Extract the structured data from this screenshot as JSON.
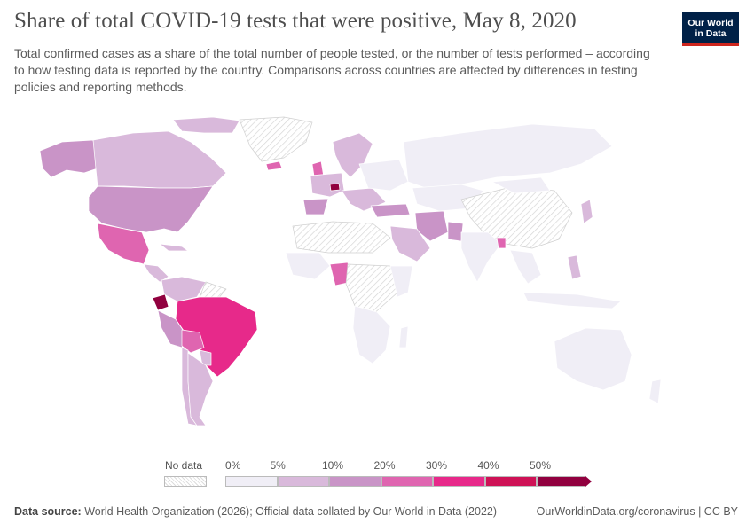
{
  "header": {
    "title": "Share of total COVID-19 tests that were positive, May 8, 2020",
    "subtitle": "Total confirmed cases as a share of the total number of people tested, or the number of tests performed – according to how testing data is reported by the country. Comparisons across countries are affected by differences in testing policies and reporting methods.",
    "logo_line1": "Our World",
    "logo_line2": "in Data"
  },
  "chart_data": {
    "type": "map",
    "title": "Share of total COVID-19 tests that were positive, May 8, 2020",
    "date": "May 8, 2020",
    "units": "% of tests positive",
    "legend": {
      "no_data_label": "No data",
      "bins": [
        "0%",
        "5%",
        "10%",
        "20%",
        "30%",
        "40%",
        "50%"
      ],
      "colors": [
        "#f0eef6",
        "#d9b9db",
        "#c994c7",
        "#df65b0",
        "#e7298a",
        "#ce1256",
        "#91003f"
      ]
    },
    "regions": [
      {
        "name": "Ecuador",
        "bin": "50%+"
      },
      {
        "name": "Belgium",
        "bin": "50%+"
      },
      {
        "name": "Brazil",
        "bin": "30–40%"
      },
      {
        "name": "Mexico",
        "bin": "20–30%"
      },
      {
        "name": "Bolivia",
        "bin": "20–30%"
      },
      {
        "name": "Nigeria",
        "bin": "20–30%"
      },
      {
        "name": "Bangladesh",
        "bin": "20–30%"
      },
      {
        "name": "United States",
        "bin": "10–20%"
      },
      {
        "name": "Peru",
        "bin": "10–20%"
      },
      {
        "name": "Spain",
        "bin": "10–20%"
      },
      {
        "name": "Iran",
        "bin": "10–20%"
      },
      {
        "name": "Turkey",
        "bin": "10–20%"
      },
      {
        "name": "Pakistan",
        "bin": "10–20%"
      },
      {
        "name": "Canada",
        "bin": "5–10%"
      },
      {
        "name": "Argentina",
        "bin": "5–10%"
      },
      {
        "name": "Chile",
        "bin": "5–10%"
      },
      {
        "name": "Saudi Arabia",
        "bin": "5–10%"
      },
      {
        "name": "Philippines",
        "bin": "5–10%"
      },
      {
        "name": "Japan",
        "bin": "5–10%"
      },
      {
        "name": "Russia",
        "bin": "0–5%"
      },
      {
        "name": "India",
        "bin": "0–5%"
      },
      {
        "name": "Australia",
        "bin": "0–5%"
      },
      {
        "name": "South Africa",
        "bin": "0–5%"
      }
    ]
  },
  "footer": {
    "source_label": "Data source:",
    "source_text": "World Health Organization (2026); Official data collated by Our World in Data (2022)",
    "link": "OurWorldinData.org/coronavirus | CC BY"
  }
}
